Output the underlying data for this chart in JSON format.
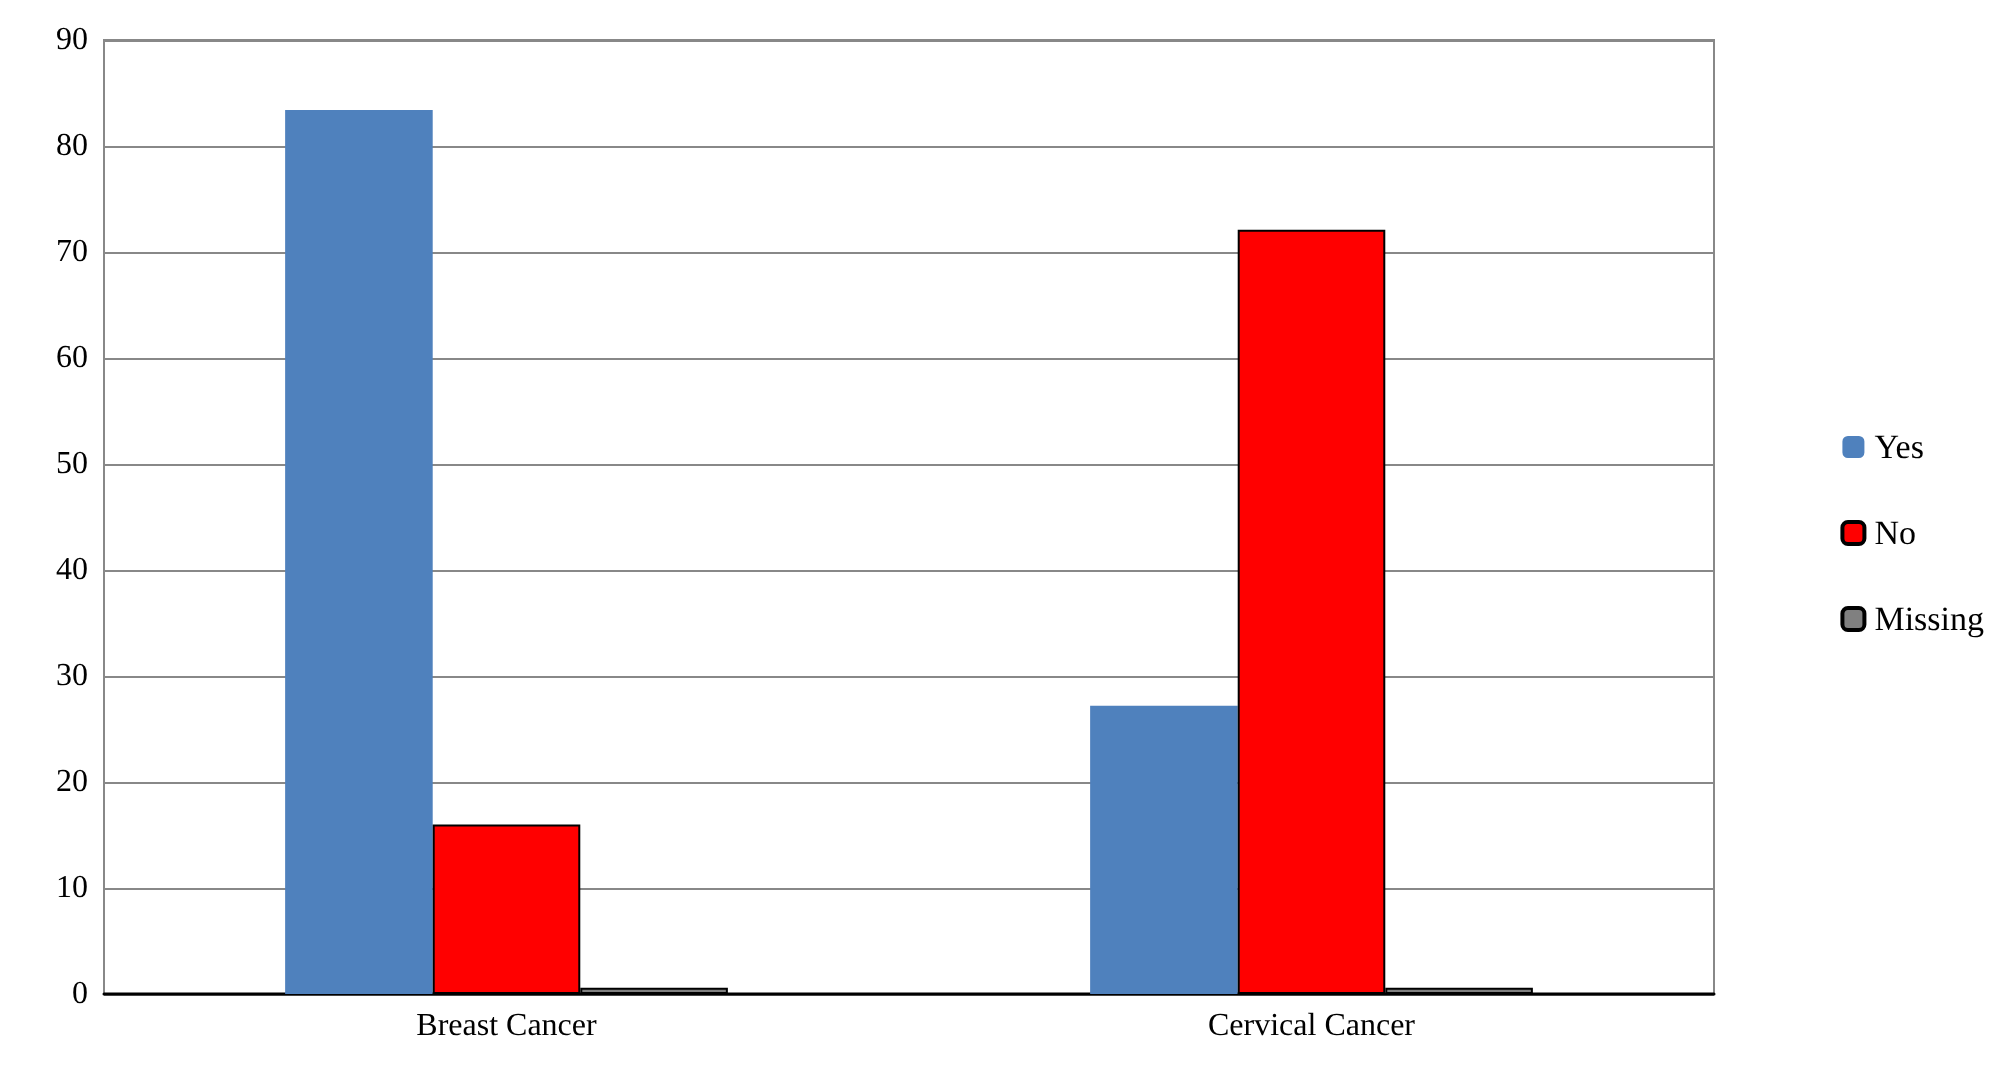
{
  "chart_data": {
    "type": "bar",
    "categories": [
      "Breast Cancer",
      "Cervical Cancer"
    ],
    "series": [
      {
        "name": "Yes",
        "color": "#4f81bd",
        "values": [
          83.4,
          27.2
        ]
      },
      {
        "name": "No",
        "color": "#ff0000",
        "values": [
          16.0,
          72.1
        ]
      },
      {
        "name": "Missing",
        "color": "#808080",
        "values": [
          0.6,
          0.6
        ]
      }
    ],
    "ylim": [
      0,
      90
    ],
    "yticks": [
      0,
      10,
      20,
      30,
      40,
      50,
      60,
      70,
      80,
      90
    ],
    "grid": "y",
    "legend": "right"
  }
}
